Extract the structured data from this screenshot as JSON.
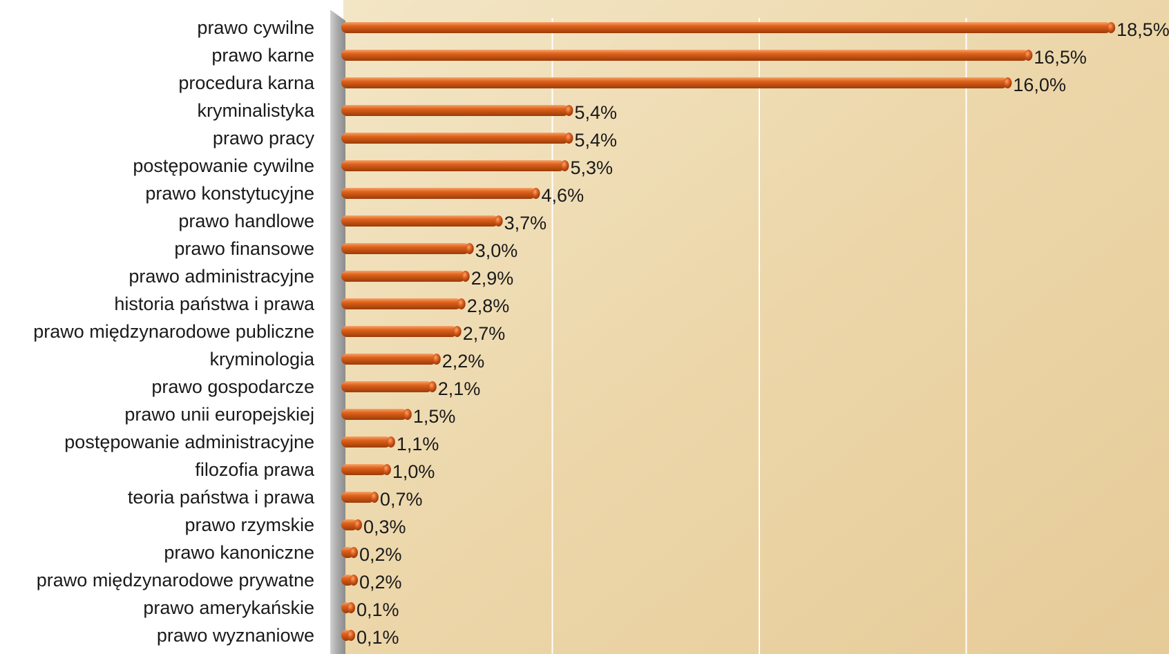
{
  "chart_data": {
    "type": "bar",
    "orientation": "horizontal",
    "categories": [
      "prawo cywilne",
      "prawo karne",
      "procedura karna",
      "kryminalistyka",
      "prawo pracy",
      "postępowanie cywilne",
      "prawo konstytucyjne",
      "prawo handlowe",
      "prawo finansowe",
      "prawo administracyjne",
      "historia państwa i prawa",
      "prawo międzynarodowe publiczne",
      "kryminologia",
      "prawo gospodarcze",
      "prawo unii europejskiej",
      "postępowanie administracyjne",
      "filozofia prawa",
      "teoria państwa i prawa",
      "prawo rzymskie",
      "prawo kanoniczne",
      "prawo międzynarodowe prywatne",
      "prawo amerykańskie",
      "prawo wyznaniowe"
    ],
    "values": [
      18.5,
      16.5,
      16.0,
      5.4,
      5.4,
      5.3,
      4.6,
      3.7,
      3.0,
      2.9,
      2.8,
      2.7,
      2.2,
      2.1,
      1.5,
      1.1,
      1.0,
      0.7,
      0.3,
      0.2,
      0.2,
      0.1,
      0.1
    ],
    "value_labels": [
      "18,5%",
      "16,5%",
      "16,0%",
      "5,4%",
      "5,4%",
      "5,3%",
      "4,6%",
      "3,7%",
      "3,0%",
      "2,9%",
      "2,8%",
      "2,7%",
      "2,2%",
      "2,1%",
      "1,5%",
      "1,1%",
      "1,0%",
      "0,7%",
      "0,3%",
      "0,2%",
      "0,2%",
      "0,1%",
      "0,1%"
    ],
    "xlim": [
      0,
      20
    ],
    "grid": true,
    "legend": "none",
    "colors": {
      "bar": "#e0621c",
      "bar_highlight": "#f6a46a",
      "bar_shadow": "#9a3c08",
      "wall": "#a8a8a8",
      "background": "#efdcb4",
      "gridline": "#ffffff"
    }
  }
}
